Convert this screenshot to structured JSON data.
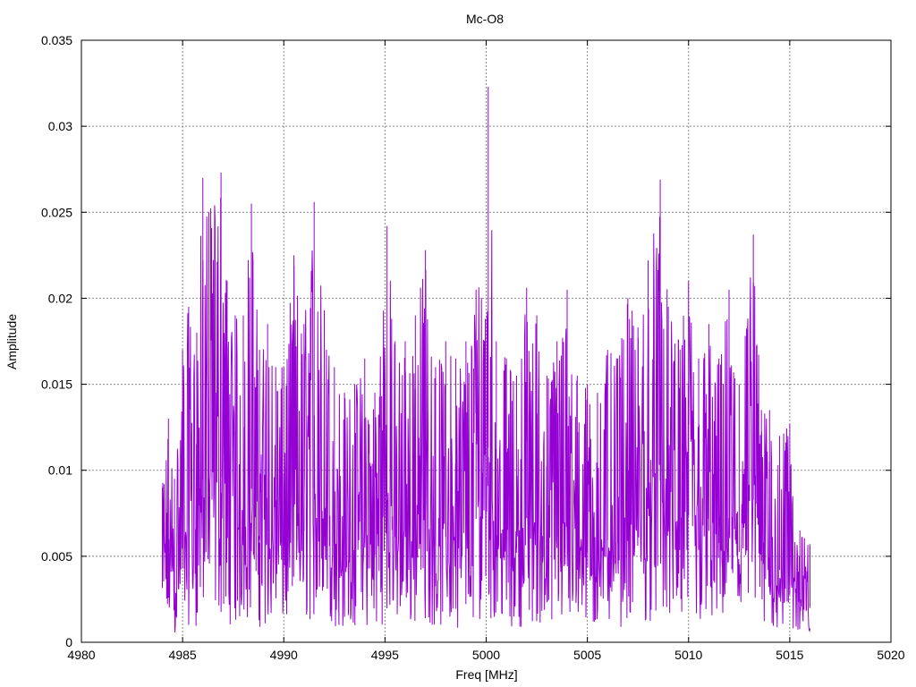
{
  "chart_data": {
    "type": "line",
    "title": "Mc-O8",
    "xlabel": "Freq [MHz]",
    "ylabel": "Amplitude",
    "xlim": [
      4980,
      5020
    ],
    "ylim": [
      0,
      0.035
    ],
    "x_ticks": [
      "4980",
      "4985",
      "4990",
      "4995",
      "5000",
      "5005",
      "5010",
      "5015",
      "5020"
    ],
    "y_ticks": [
      "0",
      "0.005",
      "0.01",
      "0.015",
      "0.02",
      "0.025",
      "0.03",
      "0.035"
    ],
    "grid": true,
    "line_color": "#9400d3",
    "series": [
      {
        "x_start": 4984.0,
        "x_end": 5016.0,
        "envelope": [
          [
            4984.0,
            0.009
          ],
          [
            4984.3,
            0.013
          ],
          [
            4984.6,
            0.0095
          ],
          [
            4985.0,
            0.017
          ],
          [
            4985.3,
            0.0195
          ],
          [
            4985.7,
            0.018
          ],
          [
            4986.0,
            0.027
          ],
          [
            4986.3,
            0.025
          ],
          [
            4986.9,
            0.0273
          ],
          [
            4987.2,
            0.021
          ],
          [
            4987.6,
            0.019
          ],
          [
            4988.0,
            0.019
          ],
          [
            4988.4,
            0.0255
          ],
          [
            4988.8,
            0.017
          ],
          [
            4989.2,
            0.0185
          ],
          [
            4989.6,
            0.016
          ],
          [
            4990.0,
            0.016
          ],
          [
            4990.5,
            0.0225
          ],
          [
            4991.0,
            0.0185
          ],
          [
            4991.5,
            0.0256
          ],
          [
            4992.0,
            0.0193
          ],
          [
            4992.5,
            0.016
          ],
          [
            4993.0,
            0.0145
          ],
          [
            4993.5,
            0.015
          ],
          [
            4994.0,
            0.0165
          ],
          [
            4994.5,
            0.0145
          ],
          [
            4995.1,
            0.0242
          ],
          [
            4995.5,
            0.0175
          ],
          [
            4996.0,
            0.0175
          ],
          [
            4996.5,
            0.019
          ],
          [
            4997.0,
            0.0228
          ],
          [
            4997.5,
            0.016
          ],
          [
            4998.0,
            0.0175
          ],
          [
            4998.5,
            0.0165
          ],
          [
            4999.0,
            0.0175
          ],
          [
            4999.5,
            0.0205
          ],
          [
            5000.1,
            0.0323
          ],
          [
            5000.5,
            0.0175
          ],
          [
            5001.0,
            0.0165
          ],
          [
            5001.5,
            0.0155
          ],
          [
            5002.0,
            0.0206
          ],
          [
            5002.5,
            0.019
          ],
          [
            5003.0,
            0.0155
          ],
          [
            5003.5,
            0.0175
          ],
          [
            5004.0,
            0.0205
          ],
          [
            5004.5,
            0.0155
          ],
          [
            5005.0,
            0.015
          ],
          [
            5005.5,
            0.0145
          ],
          [
            5006.0,
            0.017
          ],
          [
            5006.5,
            0.0165
          ],
          [
            5007.0,
            0.02
          ],
          [
            5007.5,
            0.0183
          ],
          [
            5008.0,
            0.0222
          ],
          [
            5008.6,
            0.0269
          ],
          [
            5009.0,
            0.0195
          ],
          [
            5009.5,
            0.0176
          ],
          [
            5010.0,
            0.021
          ],
          [
            5010.5,
            0.0165
          ],
          [
            5011.0,
            0.0185
          ],
          [
            5011.5,
            0.0165
          ],
          [
            5012.0,
            0.0205
          ],
          [
            5012.5,
            0.015
          ],
          [
            5013.2,
            0.0237
          ],
          [
            5013.6,
            0.0135
          ],
          [
            5014.0,
            0.0135
          ],
          [
            5014.5,
            0.012
          ],
          [
            5015.0,
            0.0127
          ],
          [
            5015.5,
            0.0065
          ],
          [
            5016.0,
            0.0057
          ]
        ]
      }
    ]
  }
}
